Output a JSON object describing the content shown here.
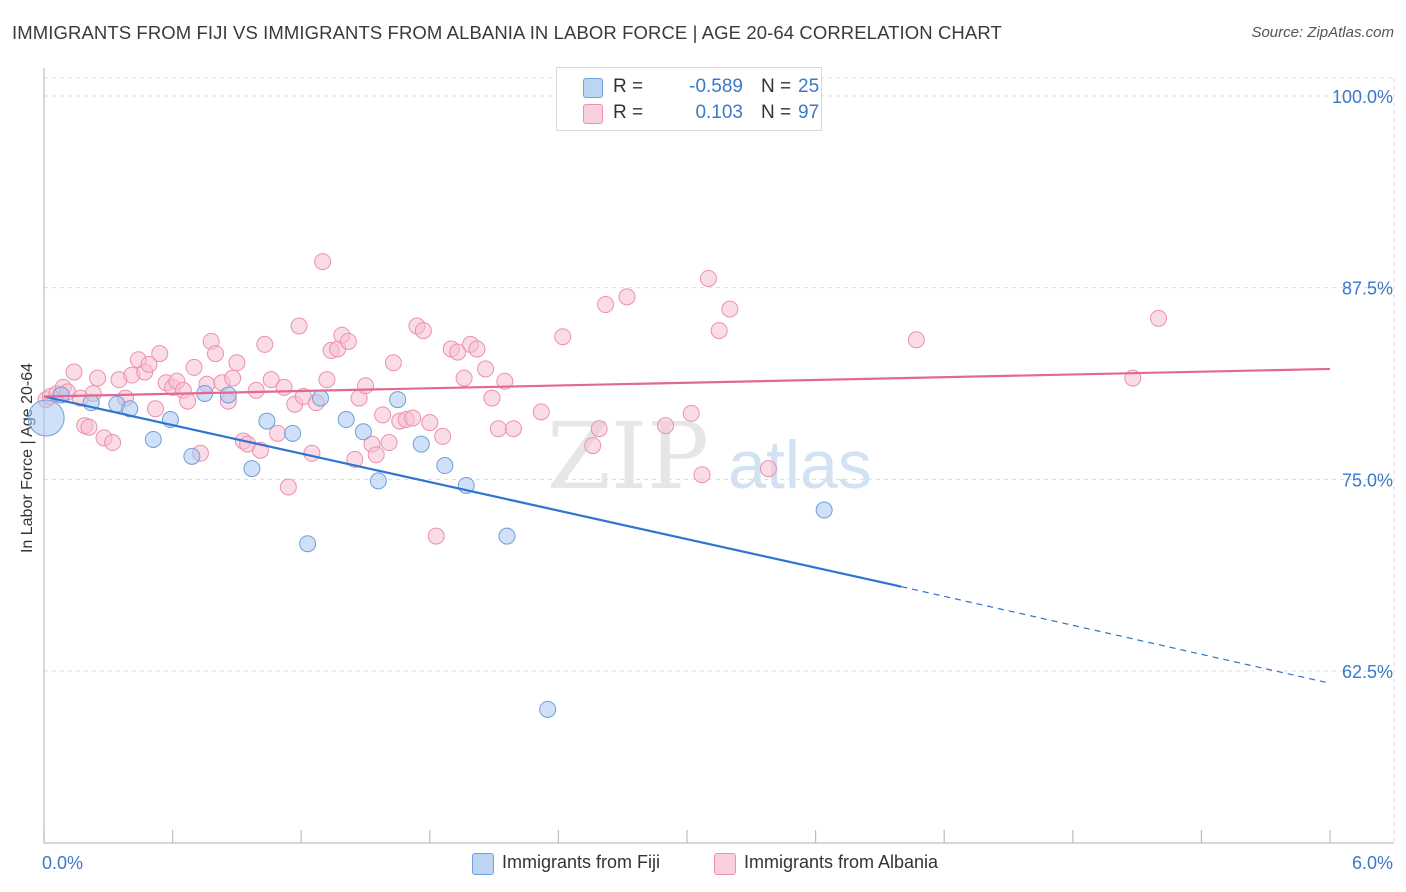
{
  "title": "IMMIGRANTS FROM FIJI VS IMMIGRANTS FROM ALBANIA IN LABOR FORCE | AGE 20-64 CORRELATION CHART",
  "source": "Source: ZipAtlas.com",
  "watermark": {
    "zip": "ZIP",
    "atlas": "atlas"
  },
  "legend": {
    "fiji": {
      "r_label": "R =",
      "r_value": "-0.589",
      "n_label": "N =",
      "n_value": "25"
    },
    "albania": {
      "r_label": "R =",
      "r_value": "0.103",
      "n_label": "N =",
      "n_value": "97"
    }
  },
  "bottom_legend": {
    "fiji": "Immigrants from Fiji",
    "albania": "Immigrants from Albania"
  },
  "colors": {
    "fiji_fill": "#a9c8f0",
    "fiji_stroke": "#6f9fdc",
    "fiji_line": "#2f74d0",
    "albania_fill": "#f6bfd1",
    "albania_stroke": "#ee8fb0",
    "albania_line": "#e2698f",
    "value_text": "#3a78c9",
    "grid": "#dcdcdc"
  },
  "chart_data": {
    "type": "scatter",
    "title": "IMMIGRANTS FROM FIJI VS IMMIGRANTS FROM ALBANIA IN LABOR FORCE | AGE 20-64 CORRELATION CHART",
    "ylabel": "In Labor Force | Age 20-64",
    "xlabel": "",
    "xlim": [
      0,
      6.0
    ],
    "ylim": [
      55.0,
      103.0
    ],
    "x_tick_labels": [
      "0.0%",
      "6.0%"
    ],
    "y_tick_values": [
      100.0,
      87.5,
      75.0,
      62.5
    ],
    "y_tick_labels": [
      "100.0%",
      "87.5%",
      "75.0%",
      "62.5%"
    ],
    "grid": true,
    "legend_position": "top-center",
    "series": [
      {
        "name": "Immigrants from Fiji",
        "r": -0.589,
        "n": 25,
        "points": [
          [
            0.01,
            79.0
          ],
          [
            0.08,
            80.5
          ],
          [
            0.22,
            80.0
          ],
          [
            0.34,
            79.9
          ],
          [
            0.4,
            79.6
          ],
          [
            0.51,
            77.6
          ],
          [
            0.59,
            78.9
          ],
          [
            0.69,
            76.5
          ],
          [
            0.75,
            80.6
          ],
          [
            0.86,
            80.5
          ],
          [
            0.97,
            75.7
          ],
          [
            1.04,
            78.8
          ],
          [
            1.16,
            78.0
          ],
          [
            1.23,
            70.8
          ],
          [
            1.29,
            80.3
          ],
          [
            1.41,
            78.9
          ],
          [
            1.49,
            78.1
          ],
          [
            1.56,
            74.9
          ],
          [
            1.65,
            80.2
          ],
          [
            1.76,
            77.3
          ],
          [
            1.87,
            75.9
          ],
          [
            1.97,
            74.6
          ],
          [
            2.16,
            71.3
          ],
          [
            2.35,
            60.0
          ],
          [
            3.64,
            73.0
          ]
        ],
        "trend": {
          "x0": 0.0,
          "y0": 80.4,
          "x1": 4.0,
          "y1": 68.0,
          "dashed_to_x": 6.0,
          "dashed_to_y": 61.7
        }
      },
      {
        "name": "Immigrants from Albania",
        "r": 0.103,
        "n": 97,
        "points": [
          [
            0.01,
            80.2
          ],
          [
            0.03,
            80.4
          ],
          [
            0.06,
            80.6
          ],
          [
            0.09,
            81.0
          ],
          [
            0.11,
            80.7
          ],
          [
            0.14,
            82.0
          ],
          [
            0.17,
            80.3
          ],
          [
            0.19,
            78.5
          ],
          [
            0.21,
            78.4
          ],
          [
            0.23,
            80.6
          ],
          [
            0.25,
            81.6
          ],
          [
            0.28,
            77.7
          ],
          [
            0.32,
            77.4
          ],
          [
            0.35,
            81.5
          ],
          [
            0.38,
            80.3
          ],
          [
            0.41,
            81.8
          ],
          [
            0.44,
            82.8
          ],
          [
            0.47,
            82.0
          ],
          [
            0.49,
            82.5
          ],
          [
            0.52,
            79.6
          ],
          [
            0.54,
            83.2
          ],
          [
            0.57,
            81.3
          ],
          [
            0.6,
            81.0
          ],
          [
            0.62,
            81.4
          ],
          [
            0.65,
            80.8
          ],
          [
            0.67,
            80.1
          ],
          [
            0.7,
            82.3
          ],
          [
            0.73,
            76.7
          ],
          [
            0.76,
            81.2
          ],
          [
            0.78,
            84.0
          ],
          [
            0.8,
            83.2
          ],
          [
            0.83,
            81.3
          ],
          [
            0.86,
            80.1
          ],
          [
            0.88,
            81.6
          ],
          [
            0.9,
            82.6
          ],
          [
            0.93,
            77.5
          ],
          [
            0.95,
            77.3
          ],
          [
            0.99,
            80.8
          ],
          [
            1.01,
            76.9
          ],
          [
            1.03,
            83.8
          ],
          [
            1.06,
            81.5
          ],
          [
            1.09,
            78.0
          ],
          [
            1.12,
            81.0
          ],
          [
            1.14,
            74.5
          ],
          [
            1.17,
            79.9
          ],
          [
            1.19,
            85.0
          ],
          [
            1.21,
            80.4
          ],
          [
            1.25,
            76.7
          ],
          [
            1.27,
            80.0
          ],
          [
            1.3,
            89.2
          ],
          [
            1.32,
            81.5
          ],
          [
            1.34,
            83.4
          ],
          [
            1.37,
            83.5
          ],
          [
            1.39,
            84.4
          ],
          [
            1.42,
            84.0
          ],
          [
            1.45,
            76.3
          ],
          [
            1.47,
            80.3
          ],
          [
            1.5,
            81.1
          ],
          [
            1.53,
            77.3
          ],
          [
            1.55,
            76.6
          ],
          [
            1.58,
            79.2
          ],
          [
            1.61,
            77.4
          ],
          [
            1.63,
            82.6
          ],
          [
            1.66,
            78.8
          ],
          [
            1.69,
            78.9
          ],
          [
            1.72,
            79.0
          ],
          [
            1.74,
            85.0
          ],
          [
            1.77,
            84.7
          ],
          [
            1.8,
            78.7
          ],
          [
            1.83,
            71.3
          ],
          [
            1.86,
            77.8
          ],
          [
            1.9,
            83.5
          ],
          [
            1.93,
            83.3
          ],
          [
            1.96,
            81.6
          ],
          [
            1.99,
            83.8
          ],
          [
            2.02,
            83.5
          ],
          [
            2.06,
            82.2
          ],
          [
            2.09,
            80.3
          ],
          [
            2.12,
            78.3
          ],
          [
            2.15,
            81.4
          ],
          [
            2.19,
            78.3
          ],
          [
            2.32,
            79.4
          ],
          [
            2.42,
            84.3
          ],
          [
            2.56,
            77.2
          ],
          [
            2.59,
            78.3
          ],
          [
            2.62,
            86.4
          ],
          [
            2.72,
            86.9
          ],
          [
            2.9,
            78.5
          ],
          [
            3.02,
            79.3
          ],
          [
            3.07,
            75.3
          ],
          [
            3.1,
            88.1
          ],
          [
            3.15,
            84.7
          ],
          [
            3.2,
            86.1
          ],
          [
            3.38,
            75.7
          ],
          [
            4.07,
            84.1
          ],
          [
            5.08,
            81.6
          ],
          [
            5.2,
            85.5
          ]
        ],
        "trend": {
          "x0": 0.0,
          "y0": 80.4,
          "x1": 6.0,
          "y1": 82.2
        }
      }
    ]
  }
}
